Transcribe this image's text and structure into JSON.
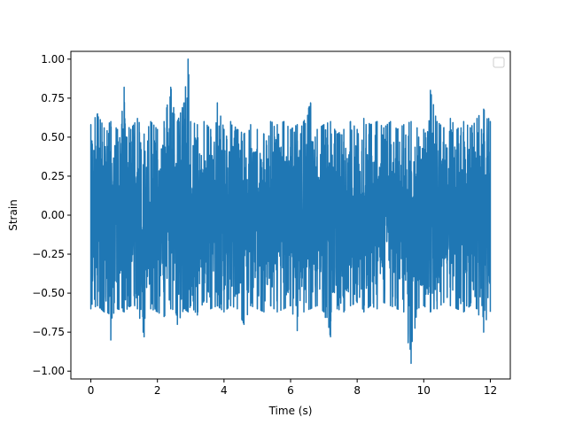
{
  "chart_data": {
    "type": "line",
    "title": "",
    "xlabel": "Time (s)",
    "ylabel": "Strain",
    "xlim": [
      -0.6,
      12.6
    ],
    "ylim": [
      -1.05,
      1.05
    ],
    "x_ticks": [
      0,
      2,
      4,
      6,
      8,
      10,
      12
    ],
    "x_tick_labels": [
      "0",
      "2",
      "4",
      "6",
      "8",
      "10",
      "12"
    ],
    "y_ticks": [
      -1.0,
      -0.75,
      -0.5,
      -0.25,
      0.0,
      0.25,
      0.5,
      0.75,
      1.0
    ],
    "y_tick_labels": [
      "−1.00",
      "−0.75",
      "−0.50",
      "−0.25",
      "0.00",
      "0.25",
      "0.50",
      "0.75",
      "1.00"
    ],
    "grid": false,
    "legend": {
      "placement": "top-right",
      "entries": []
    },
    "series": [
      {
        "color": "#1f77b4",
        "x": [
          0.0,
          0.2,
          0.4,
          0.6,
          0.8,
          1.0,
          1.2,
          1.4,
          1.6,
          1.8,
          2.0,
          2.2,
          2.4,
          2.6,
          2.8,
          2.92,
          3.0,
          3.2,
          3.4,
          3.6,
          3.8,
          4.0,
          4.2,
          4.4,
          4.6,
          4.8,
          5.0,
          5.2,
          5.4,
          5.6,
          5.8,
          6.0,
          6.2,
          6.4,
          6.6,
          6.8,
          7.0,
          7.2,
          7.4,
          7.6,
          7.8,
          8.0,
          8.2,
          8.4,
          8.6,
          8.8,
          9.0,
          9.2,
          9.4,
          9.62,
          9.8,
          10.0,
          10.2,
          10.4,
          10.6,
          10.8,
          11.0,
          11.2,
          11.4,
          11.6,
          11.8,
          12.0
        ],
        "y_max": [
          0.58,
          0.65,
          0.56,
          0.6,
          0.55,
          0.82,
          0.55,
          0.62,
          0.52,
          0.6,
          0.55,
          0.6,
          0.82,
          0.6,
          0.72,
          1.0,
          0.6,
          0.58,
          0.6,
          0.55,
          0.72,
          0.55,
          0.6,
          0.55,
          0.52,
          0.58,
          0.55,
          0.52,
          0.6,
          0.58,
          0.6,
          0.55,
          0.58,
          0.6,
          0.72,
          0.55,
          0.58,
          0.6,
          0.52,
          0.55,
          0.6,
          0.55,
          0.62,
          0.58,
          0.6,
          0.56,
          0.6,
          0.55,
          0.58,
          0.6,
          0.56,
          0.55,
          0.8,
          0.6,
          0.56,
          0.62,
          0.55,
          0.6,
          0.56,
          0.62,
          0.68,
          0.6
        ],
        "y_min": [
          -0.6,
          -0.58,
          -0.62,
          -0.8,
          -0.6,
          -0.62,
          -0.58,
          -0.6,
          -0.78,
          -0.6,
          -0.62,
          -0.65,
          -0.6,
          -0.7,
          -0.6,
          -0.62,
          -0.58,
          -0.64,
          -0.55,
          -0.6,
          -0.58,
          -0.62,
          -0.58,
          -0.6,
          -0.7,
          -0.58,
          -0.6,
          -0.62,
          -0.58,
          -0.62,
          -0.6,
          -0.58,
          -0.74,
          -0.62,
          -0.6,
          -0.58,
          -0.62,
          -0.78,
          -0.6,
          -0.62,
          -0.58,
          -0.56,
          -0.62,
          -0.58,
          -0.6,
          -0.56,
          -0.58,
          -0.6,
          -0.62,
          -0.95,
          -0.6,
          -0.58,
          -0.62,
          -0.6,
          -0.56,
          -0.58,
          -0.6,
          -0.62,
          -0.58,
          -0.6,
          -0.75,
          -0.62
        ]
      }
    ]
  }
}
